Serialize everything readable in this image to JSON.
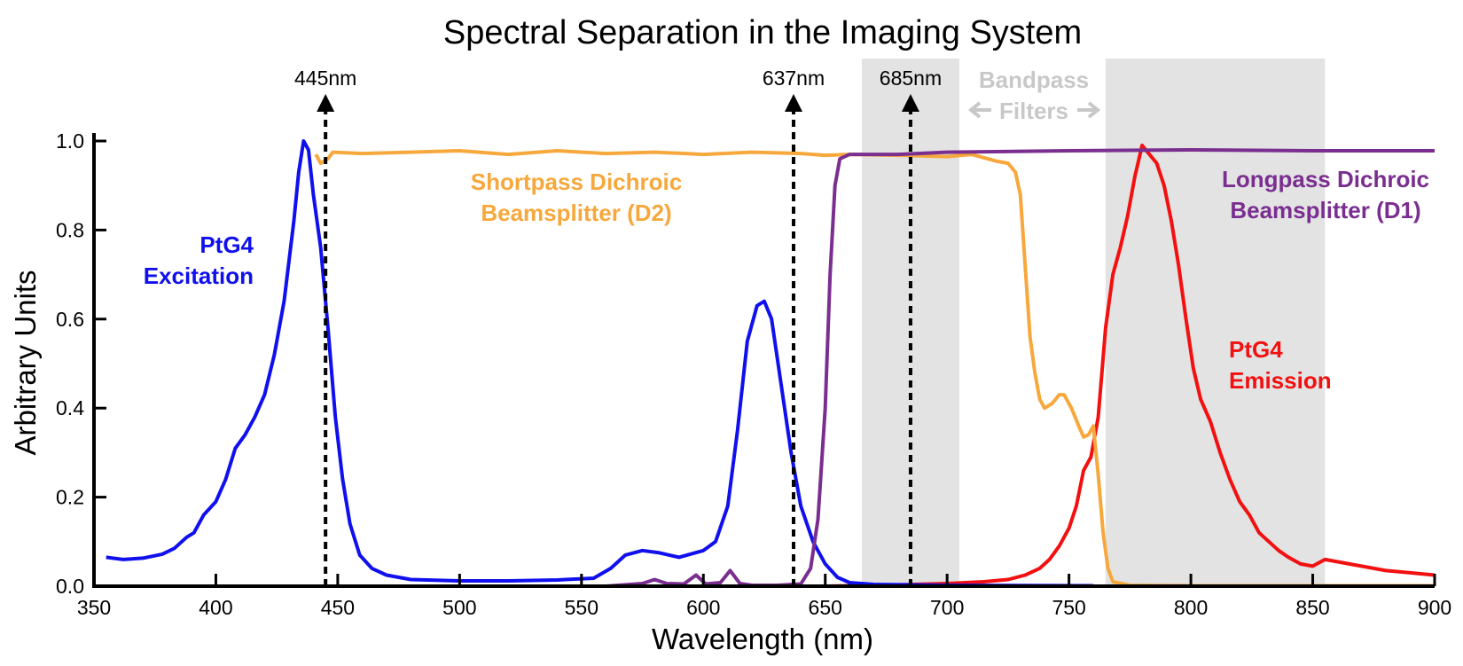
{
  "chart_data": {
    "type": "line",
    "title": "Spectral Separation in the Imaging System",
    "xlabel": "Wavelength (nm)",
    "ylabel": "Arbitrary Units",
    "xlim": [
      350,
      900
    ],
    "ylim": [
      0,
      1.0
    ],
    "x_ticks": [
      350,
      400,
      450,
      500,
      550,
      600,
      650,
      700,
      750,
      800,
      850,
      900
    ],
    "y_ticks": [
      0.0,
      0.2,
      0.4,
      0.6,
      0.8,
      1.0
    ],
    "grid": false,
    "bandpass_bands": [
      [
        665,
        705
      ],
      [
        765,
        855
      ]
    ],
    "bandpass_label": [
      "Bandpass",
      "Filters"
    ],
    "markers": [
      {
        "x": 445,
        "label": "445nm"
      },
      {
        "x": 637,
        "label": "637nm"
      },
      {
        "x": 685,
        "label": "685nm"
      }
    ],
    "series": [
      {
        "name": "PtG4 Excitation",
        "label_lines": [
          "PtG4",
          "Excitation"
        ],
        "color": "#1010ee",
        "points": [
          [
            355,
            0.065
          ],
          [
            362,
            0.06
          ],
          [
            370,
            0.063
          ],
          [
            378,
            0.072
          ],
          [
            383,
            0.085
          ],
          [
            388,
            0.11
          ],
          [
            391,
            0.12
          ],
          [
            395,
            0.16
          ],
          [
            400,
            0.19
          ],
          [
            404,
            0.24
          ],
          [
            408,
            0.31
          ],
          [
            412,
            0.34
          ],
          [
            416,
            0.38
          ],
          [
            420,
            0.43
          ],
          [
            424,
            0.52
          ],
          [
            428,
            0.64
          ],
          [
            432,
            0.82
          ],
          [
            434,
            0.93
          ],
          [
            436,
            1.0
          ],
          [
            438,
            0.98
          ],
          [
            440,
            0.88
          ],
          [
            443,
            0.76
          ],
          [
            446,
            0.58
          ],
          [
            449,
            0.38
          ],
          [
            452,
            0.24
          ],
          [
            455,
            0.14
          ],
          [
            459,
            0.07
          ],
          [
            464,
            0.04
          ],
          [
            470,
            0.025
          ],
          [
            480,
            0.015
          ],
          [
            500,
            0.012
          ],
          [
            520,
            0.012
          ],
          [
            540,
            0.014
          ],
          [
            555,
            0.018
          ],
          [
            562,
            0.04
          ],
          [
            568,
            0.07
          ],
          [
            575,
            0.08
          ],
          [
            582,
            0.075
          ],
          [
            590,
            0.065
          ],
          [
            600,
            0.08
          ],
          [
            605,
            0.1
          ],
          [
            610,
            0.18
          ],
          [
            614,
            0.35
          ],
          [
            618,
            0.55
          ],
          [
            622,
            0.63
          ],
          [
            625,
            0.64
          ],
          [
            628,
            0.6
          ],
          [
            632,
            0.45
          ],
          [
            636,
            0.3
          ],
          [
            640,
            0.18
          ],
          [
            645,
            0.1
          ],
          [
            650,
            0.05
          ],
          [
            655,
            0.02
          ],
          [
            660,
            0.008
          ],
          [
            670,
            0.004
          ],
          [
            700,
            0.002
          ],
          [
            760,
            0.001
          ]
        ]
      },
      {
        "name": "Shortpass Dichroic Beamsplitter (D2)",
        "label_lines": [
          "Shortpass Dichroic",
          "Beamsplitter (D2)"
        ],
        "color": "#f7a83c",
        "points": [
          [
            441,
            0.97
          ],
          [
            443,
            0.95
          ],
          [
            446,
            0.96
          ],
          [
            448,
            0.975
          ],
          [
            460,
            0.972
          ],
          [
            480,
            0.975
          ],
          [
            500,
            0.978
          ],
          [
            520,
            0.97
          ],
          [
            540,
            0.978
          ],
          [
            560,
            0.972
          ],
          [
            580,
            0.975
          ],
          [
            600,
            0.97
          ],
          [
            620,
            0.975
          ],
          [
            640,
            0.972
          ],
          [
            650,
            0.968
          ],
          [
            660,
            0.97
          ],
          [
            680,
            0.968
          ],
          [
            700,
            0.965
          ],
          [
            710,
            0.97
          ],
          [
            720,
            0.955
          ],
          [
            725,
            0.95
          ],
          [
            728,
            0.93
          ],
          [
            730,
            0.88
          ],
          [
            732,
            0.72
          ],
          [
            734,
            0.56
          ],
          [
            736,
            0.48
          ],
          [
            738,
            0.42
          ],
          [
            740,
            0.4
          ],
          [
            743,
            0.41
          ],
          [
            746,
            0.43
          ],
          [
            748,
            0.43
          ],
          [
            751,
            0.4
          ],
          [
            754,
            0.36
          ],
          [
            756,
            0.335
          ],
          [
            758,
            0.34
          ],
          [
            760,
            0.36
          ],
          [
            762,
            0.25
          ],
          [
            764,
            0.12
          ],
          [
            766,
            0.04
          ],
          [
            768,
            0.01
          ],
          [
            775,
            0.002
          ],
          [
            800,
            0.001
          ],
          [
            900,
            0.001
          ]
        ]
      },
      {
        "name": "Longpass Dichroic Beamsplitter (D1)",
        "label_lines": [
          "Longpass Dichroic",
          "Beamsplitter (D1)"
        ],
        "color": "#7a2e90",
        "points": [
          [
            500,
            0.0
          ],
          [
            560,
            0.0
          ],
          [
            575,
            0.006
          ],
          [
            580,
            0.015
          ],
          [
            585,
            0.006
          ],
          [
            592,
            0.005
          ],
          [
            597,
            0.025
          ],
          [
            601,
            0.005
          ],
          [
            607,
            0.008
          ],
          [
            611,
            0.035
          ],
          [
            615,
            0.006
          ],
          [
            620,
            0.002
          ],
          [
            630,
            0.002
          ],
          [
            640,
            0.005
          ],
          [
            644,
            0.04
          ],
          [
            647,
            0.15
          ],
          [
            650,
            0.4
          ],
          [
            652,
            0.7
          ],
          [
            654,
            0.9
          ],
          [
            656,
            0.96
          ],
          [
            660,
            0.97
          ],
          [
            680,
            0.97
          ],
          [
            700,
            0.975
          ],
          [
            750,
            0.978
          ],
          [
            800,
            0.98
          ],
          [
            850,
            0.978
          ],
          [
            900,
            0.978
          ]
        ]
      },
      {
        "name": "PtG4 Emission",
        "label_lines": [
          "PtG4",
          "Emission"
        ],
        "color": "#f21010",
        "points": [
          [
            650,
            0.0
          ],
          [
            680,
            0.003
          ],
          [
            700,
            0.006
          ],
          [
            715,
            0.01
          ],
          [
            725,
            0.015
          ],
          [
            732,
            0.025
          ],
          [
            738,
            0.04
          ],
          [
            742,
            0.06
          ],
          [
            746,
            0.09
          ],
          [
            750,
            0.13
          ],
          [
            753,
            0.18
          ],
          [
            756,
            0.26
          ],
          [
            759,
            0.29
          ],
          [
            762,
            0.38
          ],
          [
            765,
            0.58
          ],
          [
            768,
            0.7
          ],
          [
            771,
            0.76
          ],
          [
            774,
            0.83
          ],
          [
            777,
            0.92
          ],
          [
            780,
            0.99
          ],
          [
            783,
            0.97
          ],
          [
            786,
            0.95
          ],
          [
            789,
            0.9
          ],
          [
            792,
            0.82
          ],
          [
            795,
            0.72
          ],
          [
            798,
            0.6
          ],
          [
            801,
            0.49
          ],
          [
            804,
            0.42
          ],
          [
            808,
            0.37
          ],
          [
            812,
            0.3
          ],
          [
            816,
            0.24
          ],
          [
            820,
            0.19
          ],
          [
            824,
            0.16
          ],
          [
            828,
            0.12
          ],
          [
            832,
            0.1
          ],
          [
            836,
            0.08
          ],
          [
            840,
            0.065
          ],
          [
            845,
            0.05
          ],
          [
            850,
            0.045
          ],
          [
            855,
            0.06
          ],
          [
            860,
            0.055
          ],
          [
            865,
            0.05
          ],
          [
            870,
            0.045
          ],
          [
            875,
            0.04
          ],
          [
            880,
            0.035
          ],
          [
            890,
            0.03
          ],
          [
            900,
            0.025
          ]
        ]
      }
    ]
  }
}
